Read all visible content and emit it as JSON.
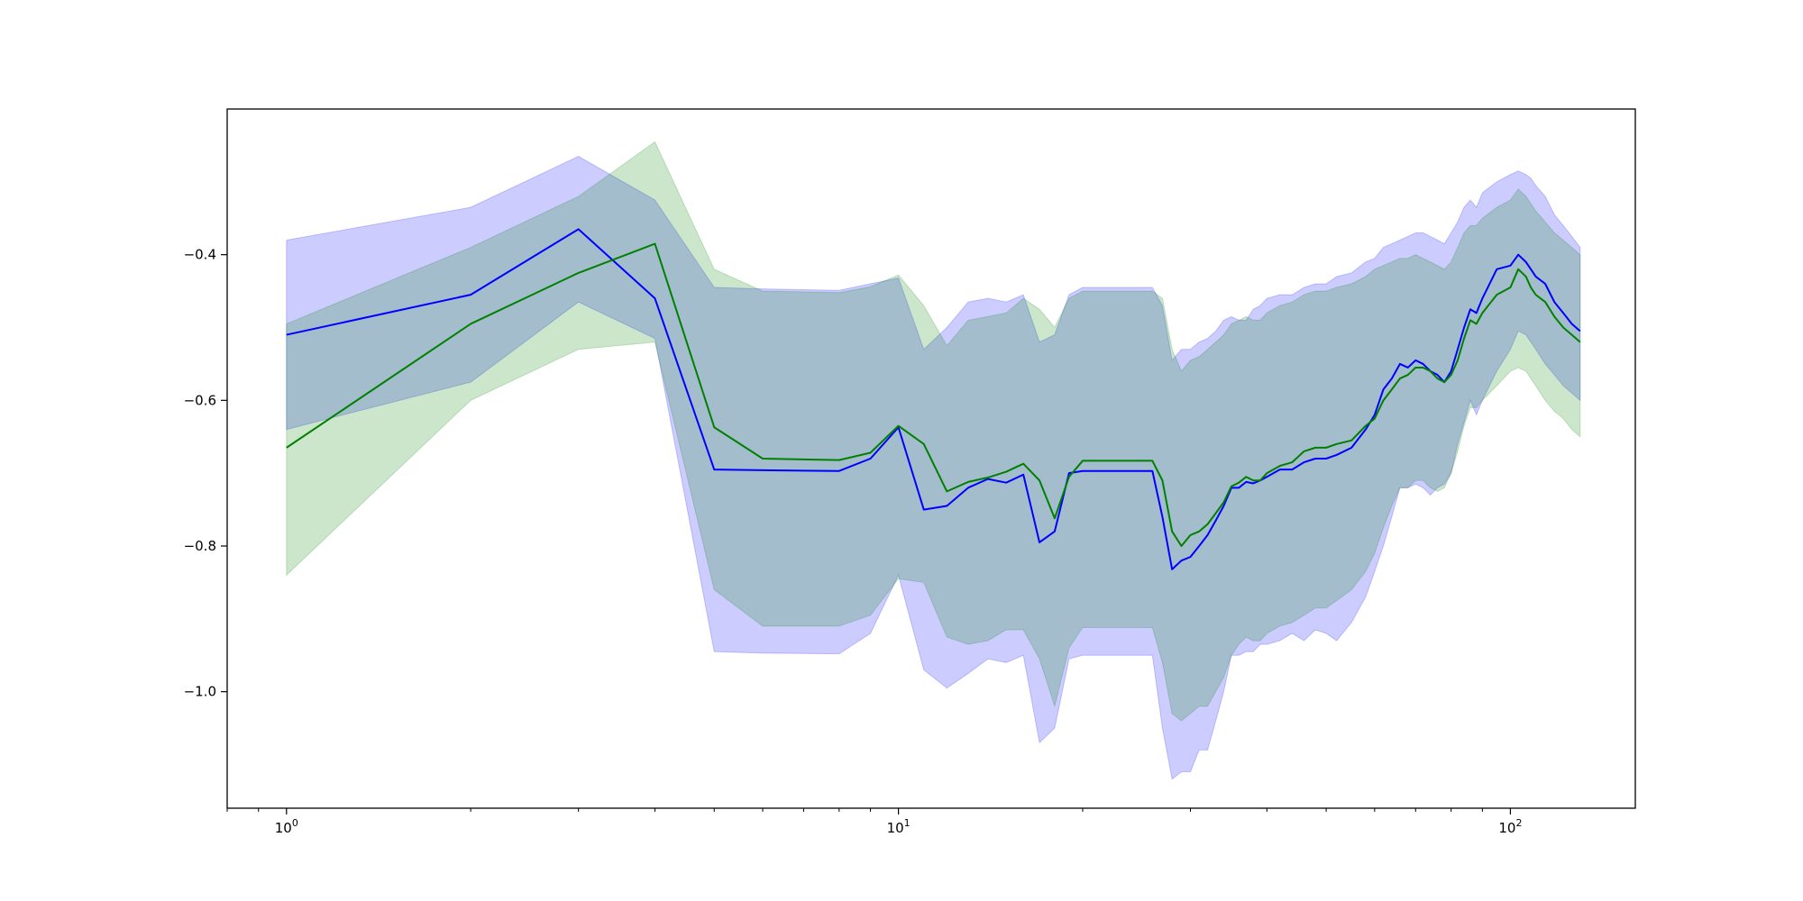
{
  "chart_data": {
    "type": "line",
    "title": "",
    "xlabel": "",
    "ylabel": "",
    "x_scale": "log",
    "xlim": [
      0.8,
      160
    ],
    "ylim": [
      -1.16,
      -0.2
    ],
    "grid": false,
    "legend": "none",
    "x_tick_labels": [
      {
        "value": 1,
        "base": "10",
        "exp": "0"
      },
      {
        "value": 10,
        "base": "10",
        "exp": "1"
      },
      {
        "value": 100,
        "base": "10",
        "exp": "2"
      }
    ],
    "y_ticks": [
      -0.4,
      -0.6,
      -0.8,
      -1.0
    ],
    "y_tick_labels": [
      "−0.4",
      "−0.6",
      "−0.8",
      "−1.0"
    ],
    "series": [
      {
        "color": "#0000ff",
        "band_color": "#0000ff",
        "band_opacity": 0.2,
        "x": [
          1,
          2,
          3,
          4,
          5,
          6,
          8,
          9,
          10,
          11,
          12,
          13,
          14,
          15,
          16,
          17,
          18,
          19,
          20,
          22,
          24,
          26,
          27,
          28,
          29,
          30,
          31,
          32,
          33,
          34,
          35,
          36,
          37,
          38,
          39,
          40,
          42,
          44,
          46,
          48,
          50,
          52,
          55,
          58,
          60,
          62,
          64,
          66,
          68,
          70,
          72,
          74,
          76,
          78,
          80,
          82,
          84,
          86,
          88,
          90,
          95,
          100,
          103,
          106,
          108,
          110,
          114,
          118,
          122,
          126,
          130
        ],
        "y": [
          -0.51,
          -0.455,
          -0.365,
          -0.46,
          -0.695,
          -0.696,
          -0.697,
          -0.68,
          -0.637,
          -0.75,
          -0.745,
          -0.72,
          -0.708,
          -0.713,
          -0.702,
          -0.795,
          -0.78,
          -0.7,
          -0.697,
          -0.697,
          -0.697,
          -0.697,
          -0.76,
          -0.832,
          -0.82,
          -0.815,
          -0.8,
          -0.785,
          -0.765,
          -0.745,
          -0.72,
          -0.72,
          -0.712,
          -0.714,
          -0.71,
          -0.705,
          -0.695,
          -0.695,
          -0.685,
          -0.68,
          -0.68,
          -0.675,
          -0.665,
          -0.64,
          -0.62,
          -0.585,
          -0.57,
          -0.55,
          -0.555,
          -0.545,
          -0.55,
          -0.56,
          -0.565,
          -0.575,
          -0.56,
          -0.53,
          -0.5,
          -0.475,
          -0.48,
          -0.46,
          -0.42,
          -0.415,
          -0.4,
          -0.41,
          -0.42,
          -0.43,
          -0.44,
          -0.465,
          -0.48,
          -0.495,
          -0.505
        ],
        "lower": [
          -0.64,
          -0.575,
          -0.465,
          -0.515,
          -0.945,
          -0.947,
          -0.948,
          -0.92,
          -0.84,
          -0.97,
          -0.995,
          -0.975,
          -0.955,
          -0.96,
          -0.95,
          -1.07,
          -1.05,
          -0.955,
          -0.95,
          -0.95,
          -0.95,
          -0.95,
          -1.05,
          -1.12,
          -1.11,
          -1.11,
          -1.08,
          -1.08,
          -1.04,
          -1.0,
          -0.95,
          -0.95,
          -0.945,
          -0.945,
          -0.935,
          -0.935,
          -0.93,
          -0.92,
          -0.93,
          -0.915,
          -0.92,
          -0.93,
          -0.905,
          -0.87,
          -0.835,
          -0.8,
          -0.76,
          -0.72,
          -0.72,
          -0.715,
          -0.72,
          -0.73,
          -0.72,
          -0.715,
          -0.7,
          -0.66,
          -0.63,
          -0.6,
          -0.62,
          -0.6,
          -0.56,
          -0.53,
          -0.505,
          -0.51,
          -0.52,
          -0.53,
          -0.55,
          -0.565,
          -0.58,
          -0.59,
          -0.6
        ],
        "upper": [
          -0.38,
          -0.335,
          -0.265,
          -0.325,
          -0.445,
          -0.447,
          -0.449,
          -0.44,
          -0.432,
          -0.53,
          -0.5,
          -0.465,
          -0.46,
          -0.465,
          -0.455,
          -0.52,
          -0.51,
          -0.455,
          -0.445,
          -0.445,
          -0.445,
          -0.445,
          -0.47,
          -0.545,
          -0.53,
          -0.53,
          -0.52,
          -0.515,
          -0.505,
          -0.49,
          -0.485,
          -0.49,
          -0.49,
          -0.475,
          -0.47,
          -0.46,
          -0.455,
          -0.455,
          -0.445,
          -0.44,
          -0.44,
          -0.43,
          -0.425,
          -0.41,
          -0.405,
          -0.39,
          -0.385,
          -0.38,
          -0.375,
          -0.37,
          -0.37,
          -0.375,
          -0.38,
          -0.385,
          -0.37,
          -0.355,
          -0.335,
          -0.325,
          -0.335,
          -0.315,
          -0.3,
          -0.29,
          -0.285,
          -0.29,
          -0.295,
          -0.305,
          -0.32,
          -0.345,
          -0.36,
          -0.375,
          -0.39
        ]
      },
      {
        "color": "#008000",
        "band_color": "#008000",
        "band_opacity": 0.2,
        "x": [
          1,
          2,
          3,
          4,
          5,
          6,
          8,
          9,
          10,
          11,
          12,
          13,
          14,
          15,
          16,
          17,
          18,
          19,
          20,
          22,
          24,
          26,
          27,
          28,
          29,
          30,
          31,
          32,
          33,
          34,
          35,
          36,
          37,
          38,
          39,
          40,
          42,
          44,
          46,
          48,
          50,
          52,
          55,
          58,
          60,
          62,
          64,
          66,
          68,
          70,
          72,
          74,
          76,
          78,
          80,
          82,
          84,
          86,
          88,
          90,
          95,
          100,
          103,
          106,
          108,
          110,
          114,
          118,
          122,
          126,
          130
        ],
        "y": [
          -0.665,
          -0.495,
          -0.425,
          -0.385,
          -0.637,
          -0.68,
          -0.682,
          -0.672,
          -0.635,
          -0.66,
          -0.725,
          -0.712,
          -0.706,
          -0.698,
          -0.687,
          -0.71,
          -0.762,
          -0.705,
          -0.683,
          -0.683,
          -0.683,
          -0.683,
          -0.71,
          -0.78,
          -0.8,
          -0.785,
          -0.78,
          -0.77,
          -0.755,
          -0.74,
          -0.718,
          -0.713,
          -0.705,
          -0.71,
          -0.71,
          -0.7,
          -0.69,
          -0.685,
          -0.67,
          -0.665,
          -0.665,
          -0.66,
          -0.655,
          -0.635,
          -0.625,
          -0.6,
          -0.585,
          -0.57,
          -0.565,
          -0.555,
          -0.555,
          -0.56,
          -0.57,
          -0.575,
          -0.565,
          -0.545,
          -0.515,
          -0.49,
          -0.495,
          -0.48,
          -0.455,
          -0.445,
          -0.42,
          -0.43,
          -0.445,
          -0.455,
          -0.465,
          -0.485,
          -0.5,
          -0.51,
          -0.52
        ],
        "lower": [
          -0.84,
          -0.6,
          -0.53,
          -0.52,
          -0.86,
          -0.91,
          -0.91,
          -0.895,
          -0.845,
          -0.85,
          -0.925,
          -0.935,
          -0.93,
          -0.915,
          -0.915,
          -0.955,
          -1.02,
          -0.94,
          -0.912,
          -0.912,
          -0.912,
          -0.912,
          -0.96,
          -1.03,
          -1.04,
          -1.03,
          -1.02,
          -1.02,
          -1.0,
          -0.98,
          -0.95,
          -0.935,
          -0.925,
          -0.93,
          -0.93,
          -0.92,
          -0.91,
          -0.905,
          -0.895,
          -0.885,
          -0.885,
          -0.875,
          -0.86,
          -0.835,
          -0.81,
          -0.775,
          -0.745,
          -0.72,
          -0.72,
          -0.71,
          -0.71,
          -0.72,
          -0.725,
          -0.72,
          -0.7,
          -0.67,
          -0.635,
          -0.61,
          -0.61,
          -0.6,
          -0.58,
          -0.56,
          -0.555,
          -0.56,
          -0.57,
          -0.58,
          -0.6,
          -0.615,
          -0.625,
          -0.64,
          -0.65
        ],
        "upper": [
          -0.495,
          -0.39,
          -0.32,
          -0.245,
          -0.42,
          -0.45,
          -0.452,
          -0.444,
          -0.428,
          -0.47,
          -0.525,
          -0.49,
          -0.485,
          -0.48,
          -0.46,
          -0.475,
          -0.5,
          -0.46,
          -0.45,
          -0.45,
          -0.45,
          -0.45,
          -0.46,
          -0.53,
          -0.56,
          -0.545,
          -0.54,
          -0.53,
          -0.52,
          -0.51,
          -0.495,
          -0.49,
          -0.485,
          -0.49,
          -0.49,
          -0.48,
          -0.47,
          -0.465,
          -0.455,
          -0.45,
          -0.45,
          -0.445,
          -0.44,
          -0.43,
          -0.42,
          -0.415,
          -0.41,
          -0.405,
          -0.405,
          -0.4,
          -0.405,
          -0.41,
          -0.415,
          -0.42,
          -0.41,
          -0.39,
          -0.37,
          -0.36,
          -0.36,
          -0.35,
          -0.335,
          -0.325,
          -0.31,
          -0.32,
          -0.33,
          -0.34,
          -0.355,
          -0.37,
          -0.38,
          -0.39,
          -0.4
        ]
      }
    ]
  }
}
